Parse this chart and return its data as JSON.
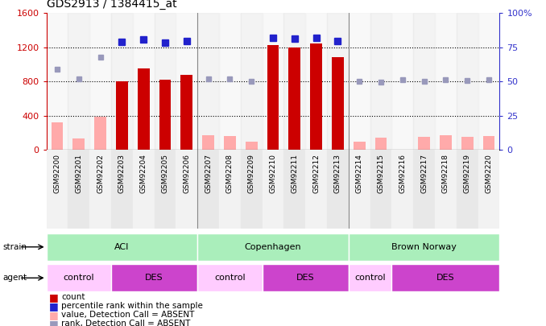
{
  "title": "GDS2913 / 1384415_at",
  "samples": [
    "GSM92200",
    "GSM92201",
    "GSM92202",
    "GSM92203",
    "GSM92204",
    "GSM92205",
    "GSM92206",
    "GSM92207",
    "GSM92208",
    "GSM92209",
    "GSM92210",
    "GSM92211",
    "GSM92212",
    "GSM92213",
    "GSM92214",
    "GSM92215",
    "GSM92216",
    "GSM92217",
    "GSM92218",
    "GSM92219",
    "GSM92220"
  ],
  "count_values": [
    null,
    null,
    null,
    800,
    950,
    820,
    880,
    null,
    null,
    null,
    1230,
    1200,
    1240,
    1080,
    null,
    null,
    null,
    null,
    null,
    null,
    null
  ],
  "count_absent": [
    320,
    130,
    390,
    null,
    null,
    null,
    null,
    170,
    160,
    100,
    null,
    null,
    null,
    null,
    100,
    140,
    null,
    150,
    170,
    155,
    165
  ],
  "pct_rank_present_raw": [
    null,
    null,
    null,
    1260,
    1290,
    1250,
    1270,
    null,
    null,
    null,
    1310,
    1300,
    1310,
    1270,
    null,
    null,
    null,
    null,
    null,
    null,
    null
  ],
  "pct_rank_absent_raw": [
    940,
    830,
    1080,
    null,
    null,
    null,
    null,
    830,
    830,
    800,
    null,
    null,
    null,
    null,
    800,
    790,
    820,
    800,
    820,
    810,
    820
  ],
  "ylim_left": [
    0,
    1600
  ],
  "ylim_right": [
    0,
    100
  ],
  "left_ticks": [
    0,
    400,
    800,
    1200,
    1600
  ],
  "right_ticks": [
    0,
    25,
    50,
    75,
    100
  ],
  "bar_color_present": "#cc0000",
  "bar_color_absent": "#ffaaaa",
  "dot_color_present": "#2222cc",
  "dot_color_absent": "#9999bb",
  "left_axis_color": "#cc0000",
  "right_axis_color": "#3333cc",
  "strain_groups": [
    {
      "label": "ACI",
      "start": 0,
      "end": 7,
      "color": "#aaeebb"
    },
    {
      "label": "Copenhagen",
      "start": 7,
      "end": 14,
      "color": "#aaeebb"
    },
    {
      "label": "Brown Norway",
      "start": 14,
      "end": 21,
      "color": "#aaeebb"
    }
  ],
  "agent_groups": [
    {
      "label": "control",
      "start": 0,
      "end": 3,
      "color": "#ffccff"
    },
    {
      "label": "DES",
      "start": 3,
      "end": 7,
      "color": "#cc44cc"
    },
    {
      "label": "control",
      "start": 7,
      "end": 10,
      "color": "#ffccff"
    },
    {
      "label": "DES",
      "start": 10,
      "end": 14,
      "color": "#cc44cc"
    },
    {
      "label": "control",
      "start": 14,
      "end": 16,
      "color": "#ffccff"
    },
    {
      "label": "DES",
      "start": 16,
      "end": 21,
      "color": "#cc44cc"
    }
  ],
  "legend_items": [
    {
      "label": "count",
      "color": "#cc0000",
      "marker": "square"
    },
    {
      "label": "percentile rank within the sample",
      "color": "#2222cc",
      "marker": "square"
    },
    {
      "label": "value, Detection Call = ABSENT",
      "color": "#ffaaaa",
      "marker": "square"
    },
    {
      "label": "rank, Detection Call = ABSENT",
      "color": "#9999bb",
      "marker": "square"
    }
  ]
}
